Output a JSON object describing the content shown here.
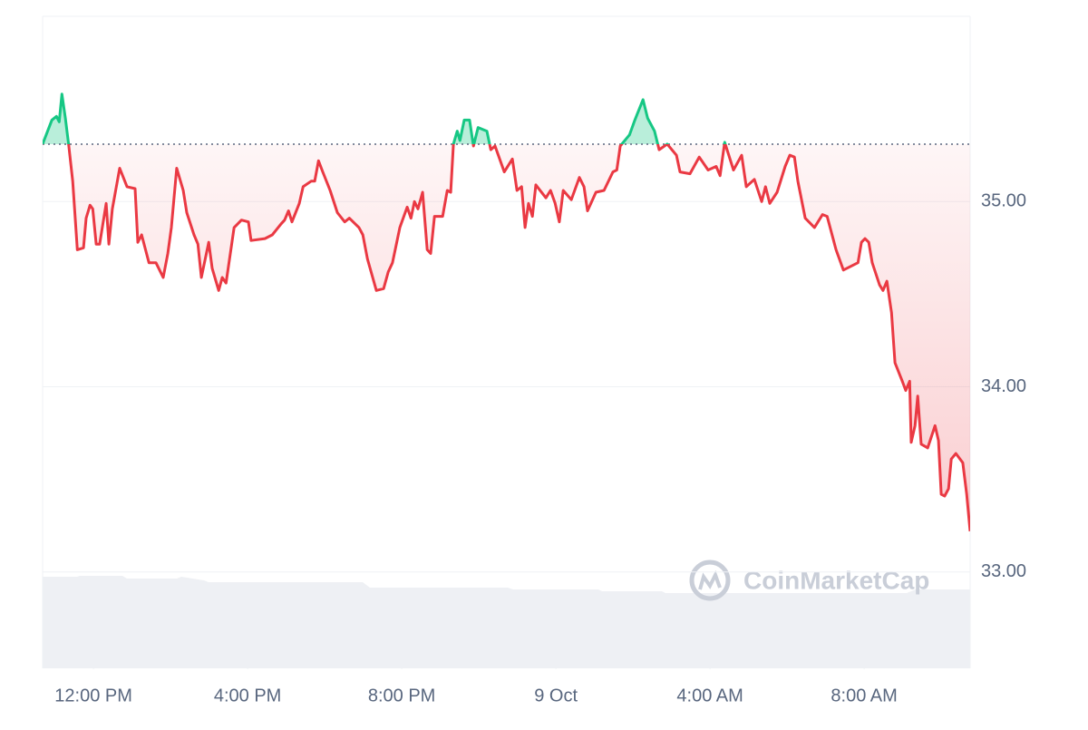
{
  "chart_data": {
    "type": "line",
    "watermark": "CoinMarketCap",
    "x": [
      -1.32,
      -1.08,
      -0.96,
      -0.89,
      -0.82,
      -0.73,
      -0.64,
      -0.54,
      -0.42,
      -0.26,
      -0.19,
      -0.09,
      -0.02,
      0.07,
      0.16,
      0.33,
      0.4,
      0.49,
      0.68,
      0.87,
      1.08,
      1.15,
      1.25,
      1.44,
      1.62,
      1.81,
      1.93,
      2.02,
      2.16,
      2.33,
      2.42,
      2.61,
      2.71,
      2.8,
      2.99,
      3.08,
      3.25,
      3.34,
      3.44,
      3.65,
      3.84,
      4.02,
      4.09,
      4.45,
      4.64,
      4.87,
      4.96,
      5.06,
      5.15,
      5.34,
      5.44,
      5.65,
      5.74,
      5.84,
      5.95,
      6.14,
      6.33,
      6.52,
      6.64,
      6.89,
      6.99,
      7.11,
      7.34,
      7.53,
      7.65,
      7.76,
      7.95,
      8.14,
      8.24,
      8.33,
      8.42,
      8.54,
      8.66,
      8.75,
      8.85,
      9.06,
      9.18,
      9.27,
      9.34,
      9.44,
      9.51,
      9.62,
      9.76,
      9.86,
      9.98,
      10.21,
      10.31,
      10.42,
      10.66,
      10.87,
      10.99,
      11.11,
      11.2,
      11.29,
      11.39,
      11.48,
      11.74,
      11.86,
      11.98,
      12.09,
      12.19,
      12.4,
      12.61,
      12.73,
      12.82,
      13.04,
      13.25,
      13.48,
      13.58,
      13.67,
      13.91,
      14.05,
      14.26,
      14.38,
      14.56,
      14.68,
      14.89,
      15.13,
      15.22,
      15.48,
      15.72,
      15.95,
      16.16,
      16.26,
      16.38,
      16.61,
      16.82,
      16.94,
      17.15,
      17.34,
      17.44,
      17.55,
      17.74,
      17.95,
      18.07,
      18.19,
      18.28,
      18.47,
      18.71,
      18.92,
      19.04,
      19.27,
      19.46,
      19.84,
      19.93,
      20.02,
      20.12,
      20.21,
      20.4,
      20.49,
      20.59,
      20.71,
      20.8,
      20.99,
      21.08,
      21.18,
      21.22,
      21.32,
      21.39,
      21.48,
      21.65,
      21.84,
      21.93,
      22.0,
      22.09,
      22.19,
      22.26,
      22.38,
      22.56,
      22.66,
      22.75
    ],
    "values": [
      35.31,
      35.44,
      35.46,
      35.43,
      35.58,
      35.45,
      35.3,
      35.11,
      34.74,
      34.75,
      34.91,
      34.98,
      34.96,
      34.77,
      34.77,
      34.99,
      34.77,
      34.96,
      35.18,
      35.08,
      35.07,
      34.78,
      34.82,
      34.67,
      34.67,
      34.59,
      34.72,
      34.86,
      35.18,
      35.06,
      34.94,
      34.82,
      34.77,
      34.59,
      34.78,
      34.64,
      34.52,
      34.59,
      34.56,
      34.86,
      34.9,
      34.89,
      34.79,
      34.8,
      34.82,
      34.88,
      34.9,
      34.95,
      34.89,
      34.99,
      35.08,
      35.11,
      35.11,
      35.22,
      35.16,
      35.06,
      34.94,
      34.89,
      34.91,
      34.86,
      34.82,
      34.69,
      34.52,
      34.53,
      34.62,
      34.67,
      34.86,
      34.97,
      34.91,
      35.0,
      34.96,
      35.05,
      34.74,
      34.72,
      34.92,
      34.92,
      35.06,
      35.05,
      35.31,
      35.38,
      35.33,
      35.44,
      35.44,
      35.3,
      35.4,
      35.38,
      35.28,
      35.3,
      35.16,
      35.23,
      35.06,
      35.08,
      34.86,
      34.99,
      34.92,
      35.09,
      35.02,
      35.06,
      34.99,
      34.89,
      35.06,
      35.01,
      35.13,
      35.08,
      34.95,
      35.05,
      35.06,
      35.16,
      35.17,
      35.3,
      35.36,
      35.44,
      35.55,
      35.45,
      35.38,
      35.28,
      35.31,
      35.25,
      35.16,
      35.15,
      35.24,
      35.17,
      35.19,
      35.14,
      35.32,
      35.17,
      35.25,
      35.08,
      35.12,
      35.0,
      35.08,
      34.99,
      35.05,
      35.19,
      35.25,
      35.24,
      35.11,
      34.91,
      34.86,
      34.93,
      34.92,
      34.74,
      34.63,
      34.67,
      34.78,
      34.8,
      34.78,
      34.67,
      34.55,
      34.52,
      34.57,
      34.4,
      34.13,
      34.03,
      33.98,
      34.03,
      33.7,
      33.79,
      33.95,
      33.69,
      33.67,
      33.79,
      33.71,
      33.42,
      33.41,
      33.45,
      33.61,
      33.64,
      33.59,
      33.42,
      33.22
    ],
    "xlim": [
      -1.32,
      22.75
    ],
    "ylim": [
      32.48,
      36.0
    ],
    "xticks": [
      {
        "value": 0,
        "label": "12:00 PM"
      },
      {
        "value": 4,
        "label": "4:00 PM"
      },
      {
        "value": 8,
        "label": "8:00 PM"
      },
      {
        "value": 12,
        "label": "9 Oct"
      },
      {
        "value": 16,
        "label": "4:00 AM"
      },
      {
        "value": 20,
        "label": "8:00 AM"
      }
    ],
    "yticks": [
      {
        "value": 33,
        "label": "33.00"
      },
      {
        "value": 34,
        "label": "34.00"
      },
      {
        "value": 35,
        "label": "35.00"
      }
    ],
    "up_color": "#16c784",
    "down_color": "#ea3943",
    "grid": true
  }
}
